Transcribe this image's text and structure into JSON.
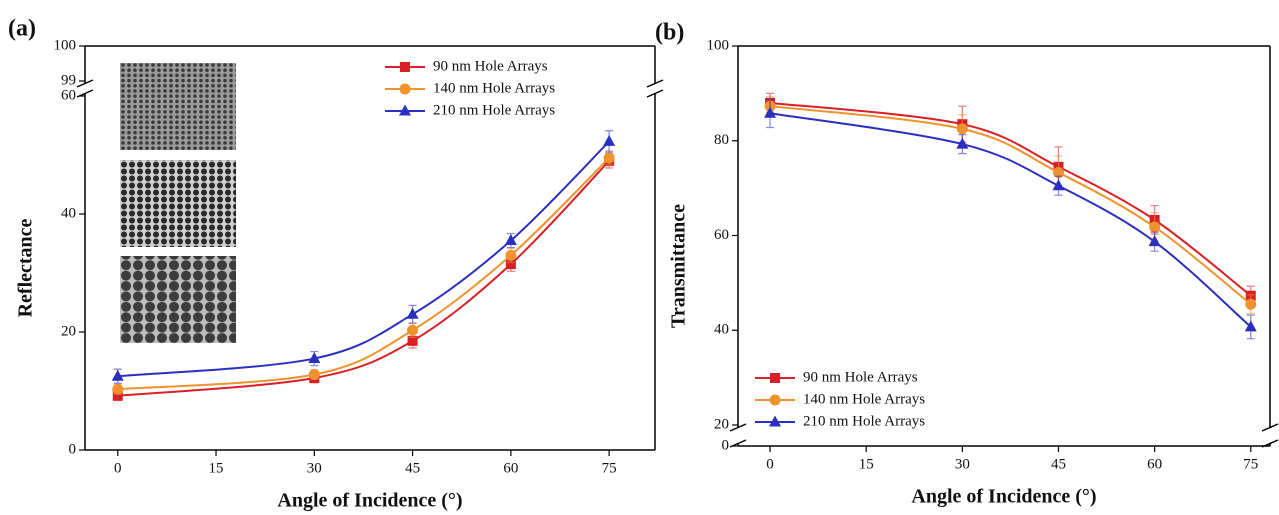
{
  "chart_data": [
    {
      "type": "line",
      "panel_label": "(a)",
      "x_label": "Angle of  Incidence (°)",
      "y_label": "Reflectance",
      "x": [
        0,
        30,
        45,
        60,
        75
      ],
      "xlim": [
        -5,
        82
      ],
      "xticks": [
        0,
        15,
        30,
        45,
        60,
        75
      ],
      "ylim": [
        0,
        100
      ],
      "ybreak": [
        60,
        99
      ],
      "yticks": [
        0,
        20,
        40,
        60,
        99,
        100
      ],
      "legend": "upper right",
      "series": [
        {
          "name": "90 nm Hole Arrays",
          "color": "#d81f26",
          "marker": "square",
          "values": [
            9.2,
            12.2,
            18.5,
            31.5,
            49.0
          ],
          "errors": [
            0.8,
            0.8,
            1.2,
            1.2,
            1.2
          ]
        },
        {
          "name": "140 nm Hole Arrays",
          "color": "#f0922e",
          "marker": "circle",
          "values": [
            10.3,
            12.8,
            20.3,
            33.0,
            49.5
          ],
          "errors": [
            0.8,
            0.8,
            1.2,
            1.2,
            1.2
          ]
        },
        {
          "name": "210 nm Hole Arrays",
          "color": "#2b2fc0",
          "marker": "triangle",
          "values": [
            12.5,
            15.5,
            23.0,
            35.5,
            52.3
          ],
          "errors": [
            1.2,
            1.2,
            1.5,
            1.2,
            1.8
          ]
        }
      ]
    },
    {
      "type": "line",
      "panel_label": "(b)",
      "x_label": "Angle of  Incidence (°)",
      "y_label": "Transmittance",
      "x": [
        0,
        30,
        45,
        60,
        75
      ],
      "xlim": [
        -5,
        78
      ],
      "xticks": [
        0,
        15,
        30,
        45,
        60,
        75
      ],
      "ylim": [
        0,
        100
      ],
      "ybreak": [
        0,
        20
      ],
      "yticks": [
        0,
        20,
        40,
        60,
        80,
        100
      ],
      "legend": "lower left",
      "series": [
        {
          "name": "90 nm Hole Arrays",
          "color": "#d81f26",
          "marker": "square",
          "values": [
            88.0,
            83.5,
            74.5,
            63.3,
            47.3
          ],
          "errors": [
            2.0,
            3.8,
            4.2,
            3.0,
            2.0
          ]
        },
        {
          "name": "140 nm Hole Arrays",
          "color": "#f0922e",
          "marker": "circle",
          "values": [
            87.3,
            82.5,
            73.3,
            61.8,
            45.5
          ],
          "errors": [
            2.0,
            3.0,
            3.5,
            3.0,
            2.0
          ]
        },
        {
          "name": "210 nm Hole Arrays",
          "color": "#2b2fc0",
          "marker": "triangle",
          "values": [
            85.8,
            79.3,
            70.5,
            58.7,
            40.7
          ],
          "errors": [
            3.0,
            2.0,
            2.0,
            2.0,
            2.5
          ]
        }
      ]
    }
  ]
}
